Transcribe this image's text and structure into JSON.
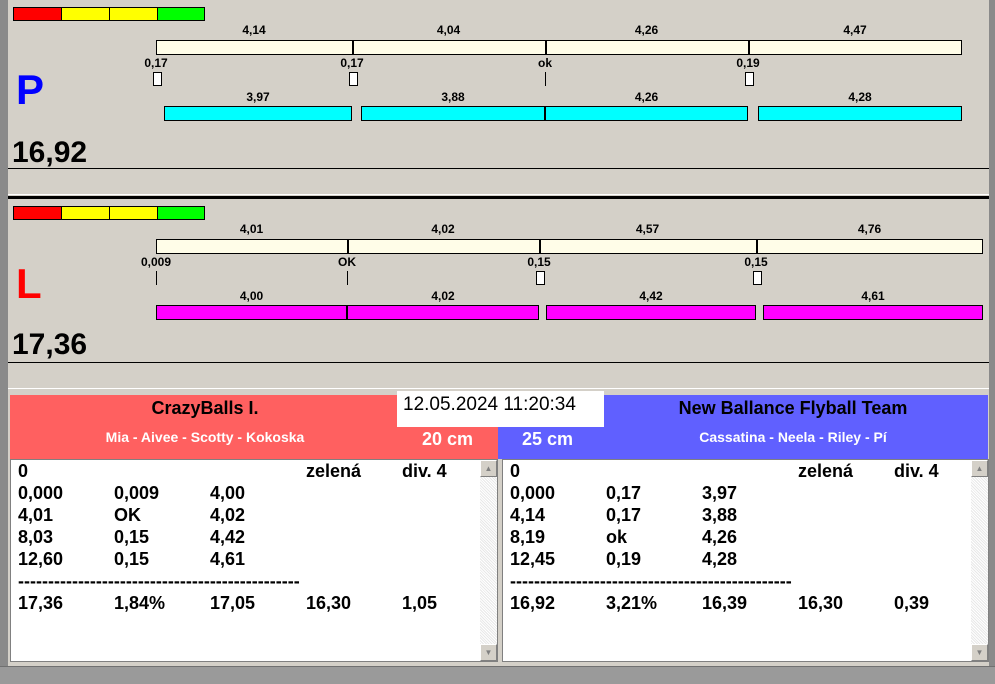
{
  "colors": {
    "red": "#ff0000",
    "yellow": "#ffff00",
    "green": "#00ff00",
    "bar_neutral": "#fffde8",
    "p_bar": "#00ffff",
    "l_bar": "#ff00ff",
    "p_letter": "#0000ff",
    "l_letter": "#ff0000",
    "left_team": "#ff6060",
    "right_team": "#6060ff"
  },
  "lanes": [
    {
      "letter": "P",
      "total": "16,92",
      "color_key": "p",
      "split_labels": [
        "4,14",
        "4,04",
        "4,26",
        "4,47"
      ],
      "reaction_labels": [
        "0,17",
        "0,17",
        "ok",
        "0,19"
      ],
      "run_labels": [
        "3,97",
        "3,88",
        "4,26",
        "4,28"
      ]
    },
    {
      "letter": "L",
      "total": "17,36",
      "color_key": "l",
      "split_labels": [
        "4,01",
        "4,02",
        "4,57",
        "4,76"
      ],
      "reaction_labels": [
        "0,009",
        "OK",
        "0,15",
        "0,15"
      ],
      "run_labels": [
        "4,00",
        "4,02",
        "4,42",
        "4,61"
      ]
    }
  ],
  "datetime": "12.05.2024 11:20:34",
  "left_team": {
    "name": "CrazyBalls I.",
    "members": "Mia - Aivee - Scotty - Kokoska",
    "height": "20 cm",
    "rows": [
      [
        "0",
        "",
        "",
        "zelená",
        "div. 4"
      ],
      [
        "0,000",
        "0,009",
        "4,00",
        "",
        ""
      ],
      [
        "4,01",
        "OK",
        "4,02",
        "",
        ""
      ],
      [
        "8,03",
        "0,15",
        "4,42",
        "",
        ""
      ],
      [
        "12,60",
        "0,15",
        "4,61",
        "",
        ""
      ],
      [
        "-----------------------------------------------",
        "",
        "",
        "",
        ""
      ],
      [
        "17,36",
        "1,84%",
        "17,05",
        "16,30",
        "1,05"
      ]
    ]
  },
  "right_team": {
    "name": "New Ballance Flyball Team",
    "members": "Cassatina - Neela - Riley - Pí",
    "height": "25 cm",
    "rows": [
      [
        "0",
        "",
        "",
        "zelená",
        "div. 4"
      ],
      [
        "0,000",
        "0,17",
        "3,97",
        "",
        ""
      ],
      [
        "4,14",
        "0,17",
        "3,88",
        "",
        ""
      ],
      [
        "8,19",
        "ok",
        "4,26",
        "",
        ""
      ],
      [
        "12,45",
        "0,19",
        "4,28",
        "",
        ""
      ],
      [
        "-----------------------------------------------",
        "",
        "",
        "",
        ""
      ],
      [
        "16,92",
        "3,21%",
        "16,39",
        "16,30",
        "0,39"
      ]
    ]
  }
}
